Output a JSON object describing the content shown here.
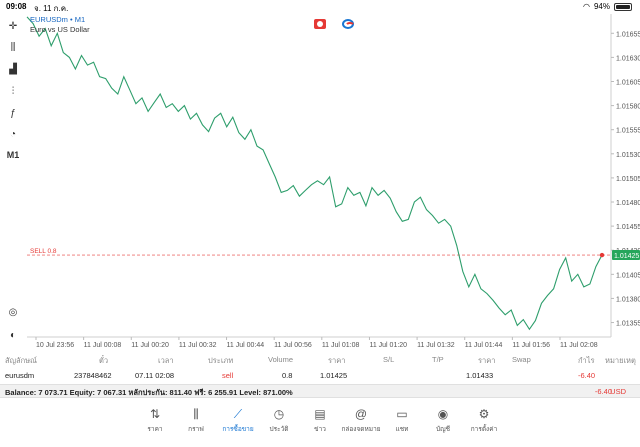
{
  "status_bar": {
    "time": "09:08",
    "date": "จ. 11 ก.ค.",
    "battery": "94%"
  },
  "symbol": {
    "name": "EURUSDm • M1",
    "description": "Euro vs US Dollar"
  },
  "toolbar": {
    "timeframe": "M1"
  },
  "order_line": {
    "label": "SELL 0.8",
    "price_badge": "1.01425"
  },
  "chart_data": {
    "type": "line",
    "title": "",
    "ylim": [
      1.0134,
      1.01675
    ],
    "x_labels": [
      "10 Jul 23:56",
      "11 Jul 00:08",
      "11 Jul 00:20",
      "11 Jul 00:32",
      "11 Jul 00:44",
      "11 Jul 00:56",
      "11 Jul 01:08",
      "11 Jul 01:20",
      "11 Jul 01:32",
      "11 Jul 01:44",
      "11 Jul 01:56",
      "11 Jul 02:08"
    ],
    "y_ticks": [
      "1.01680",
      "1.01655",
      "1.01630",
      "1.01605",
      "1.01580",
      "1.01555",
      "1.01530",
      "1.01505",
      "1.01480",
      "1.01455",
      "1.01430",
      "1.01405",
      "1.01380",
      "1.01355"
    ],
    "y_tick_values": [
      1.0168,
      1.01655,
      1.0163,
      1.01605,
      1.0158,
      1.01555,
      1.0153,
      1.01505,
      1.0148,
      1.01455,
      1.0143,
      1.01405,
      1.0138,
      1.01355
    ],
    "series": [
      {
        "values": [
          1.01672,
          1.01665,
          1.01652,
          1.0166,
          1.01642,
          1.01655,
          1.01635,
          1.0163,
          1.01618,
          1.01632,
          1.01622,
          1.01625,
          1.0161,
          1.01608,
          1.01598,
          1.01592,
          1.0161,
          1.01596,
          1.01582,
          1.01588,
          1.01574,
          1.01583,
          1.01592,
          1.01578,
          1.01582,
          1.01574,
          1.0158,
          1.01566,
          1.01572,
          1.0156,
          1.01553,
          1.01567,
          1.01572,
          1.01558,
          1.01568,
          1.01552,
          1.01545,
          1.01555,
          1.01538,
          1.01534,
          1.0152,
          1.01506,
          1.0149,
          1.01492,
          1.01497,
          1.01486,
          1.01492,
          1.01498,
          1.01502,
          1.01498,
          1.01506,
          1.01475,
          1.01478,
          1.01495,
          1.01487,
          1.0149,
          1.01476,
          1.01495,
          1.01487,
          1.01492,
          1.01484,
          1.0147,
          1.0146,
          1.01462,
          1.0148,
          1.01485,
          1.01472,
          1.01466,
          1.01458,
          1.01462,
          1.01455,
          1.01435,
          1.01408,
          1.01392,
          1.01405,
          1.0139,
          1.01385,
          1.01378,
          1.0137,
          1.01363,
          1.01368,
          1.01352,
          1.01358,
          1.01348,
          1.01357,
          1.01375,
          1.01383,
          1.0139,
          1.0141,
          1.01422,
          1.01398,
          1.01405,
          1.01392,
          1.01395,
          1.01413,
          1.01425
        ]
      }
    ],
    "markers": {
      "order_price": 1.01425
    }
  },
  "table": {
    "headers": [
      "สัญลักษณ์",
      "ตั๋ว",
      "เวลา",
      "ประเภท",
      "Volume",
      "ราคา",
      "S/L",
      "T/P",
      "ราคา",
      "Swap",
      "กำไร",
      "หมายเหตุ"
    ],
    "row": {
      "symbol": "eurusdm",
      "ticket": "237848462",
      "time": "07.11 02:08",
      "type": "sell",
      "volume": "0.8",
      "open_price": "1.01425",
      "sl": "",
      "tp": "",
      "current_price": "1.01433",
      "swap": "",
      "profit": "-6.40",
      "note": ""
    }
  },
  "balance_bar": {
    "text": "Balance: 7 073.71 Equity: 7 067.31 หลักประกัน: 811.40 ฟรี: 6 255.91 Level: 871.00%",
    "profit": "-6.40",
    "currency": "USD"
  },
  "tabs": [
    {
      "label": "ราคา",
      "icon": "quotes-icon"
    },
    {
      "label": "กราฟ",
      "icon": "chart-icon"
    },
    {
      "label": "การซื้อขาย",
      "icon": "trade-icon",
      "active": true
    },
    {
      "label": "ประวัติ",
      "icon": "history-icon"
    },
    {
      "label": "ข่าว",
      "icon": "news-icon"
    },
    {
      "label": "กล่องจดหมาย",
      "icon": "mailbox-icon"
    },
    {
      "label": "แชท",
      "icon": "chat-icon"
    },
    {
      "label": "บัญชี",
      "icon": "account-icon"
    },
    {
      "label": "การตั้งค่า",
      "icon": "settings-icon"
    }
  ],
  "colors": {
    "line": "#2e9e6c",
    "sell": "#e53935",
    "accent": "#1976d2",
    "badge": "#26a65b"
  }
}
